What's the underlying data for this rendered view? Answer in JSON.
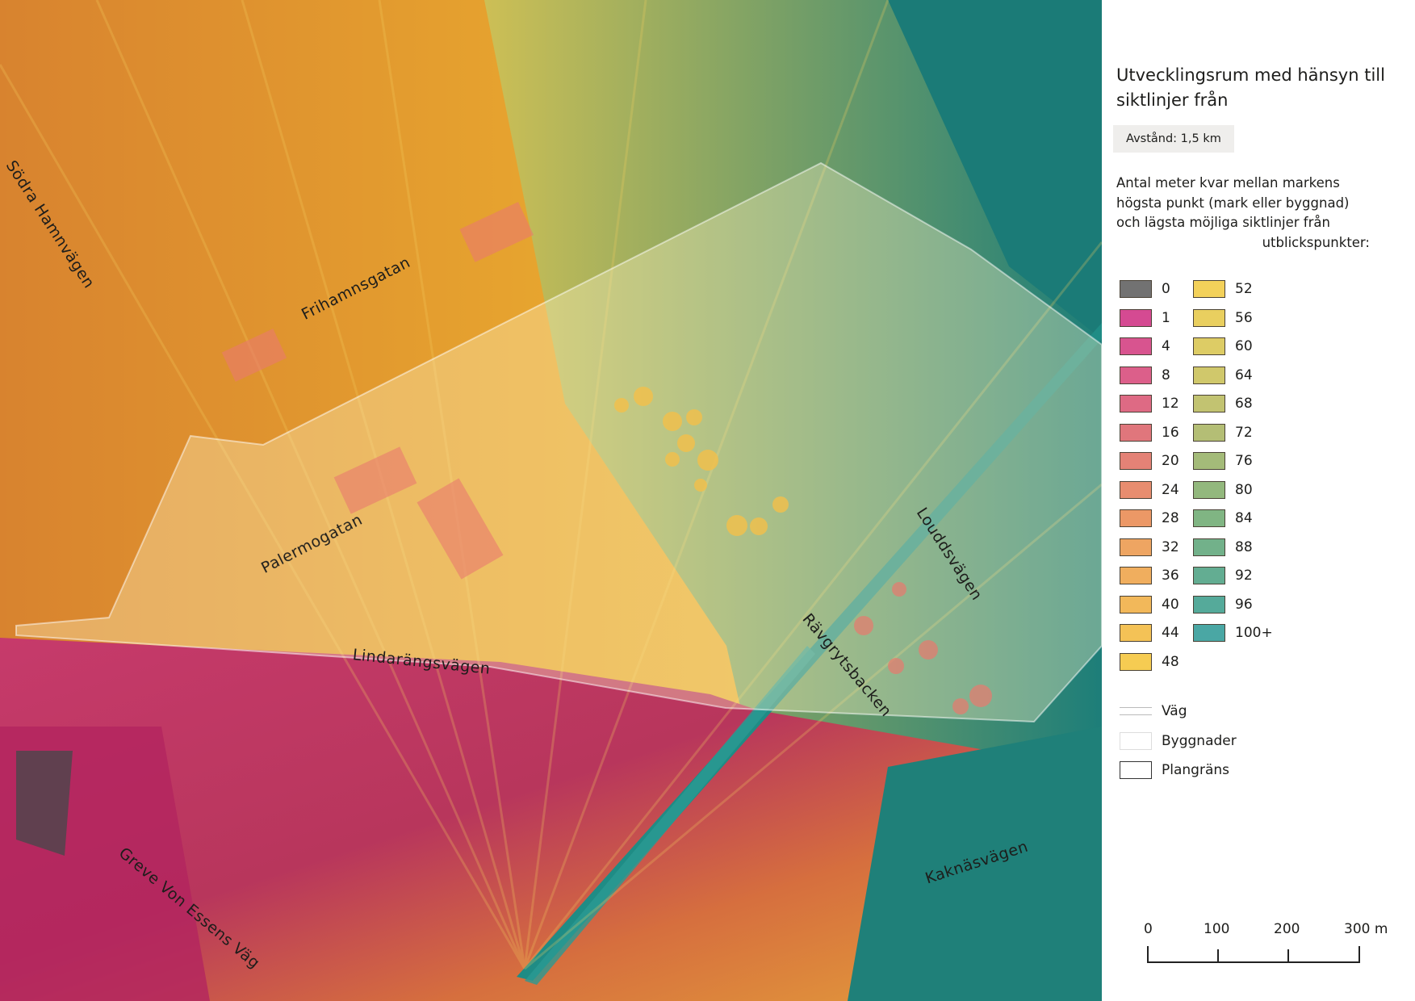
{
  "map": {
    "roads": [
      {
        "id": "sodra-hamnvagen",
        "label": "Södra Hamnvägen"
      },
      {
        "id": "frihamnsgatan",
        "label": "Frihamnsgatan"
      },
      {
        "id": "palermogatan",
        "label": "Palermogatan"
      },
      {
        "id": "lindarangsvagen",
        "label": "Lindarängsvägen"
      },
      {
        "id": "louddsvagen",
        "label": "Louddsvägen"
      },
      {
        "id": "ravgrytsbacken",
        "label": "Rävgrytsbacken"
      },
      {
        "id": "greve-von-essens-vag",
        "label": "Greve Von Essens Väg"
      },
      {
        "id": "kaknasvagen",
        "label": "Kaknäsvägen"
      }
    ]
  },
  "legend": {
    "title": "Utvecklingsrum med hänsyn till siktlinjer från",
    "distance": "Avstånd: 1,5 km",
    "description": "Antal meter kvar mellan markens högsta punkt (mark eller byggnad) och lägsta möjliga siktlinjer från",
    "description_last": "utblickspunkter:",
    "classes": [
      {
        "label": "0",
        "color": "#727272"
      },
      {
        "label": "1",
        "color": "#d54a92"
      },
      {
        "label": "4",
        "color": "#d8548f"
      },
      {
        "label": "8",
        "color": "#dc5f8a"
      },
      {
        "label": "12",
        "color": "#de6a84"
      },
      {
        "label": "16",
        "color": "#e0767c"
      },
      {
        "label": "20",
        "color": "#e48276"
      },
      {
        "label": "24",
        "color": "#e88d6f"
      },
      {
        "label": "28",
        "color": "#ec9866"
      },
      {
        "label": "32",
        "color": "#eea562"
      },
      {
        "label": "36",
        "color": "#f0ae5e"
      },
      {
        "label": "40",
        "color": "#f2b85a"
      },
      {
        "label": "44",
        "color": "#f4c256"
      },
      {
        "label": "48",
        "color": "#f6cc52"
      },
      {
        "label": "52",
        "color": "#f3d15a"
      },
      {
        "label": "56",
        "color": "#e9cf5f"
      },
      {
        "label": "60",
        "color": "#ddcc65"
      },
      {
        "label": "64",
        "color": "#d0c86b"
      },
      {
        "label": "68",
        "color": "#c2c371"
      },
      {
        "label": "72",
        "color": "#b4be75"
      },
      {
        "label": "76",
        "color": "#a4bb79"
      },
      {
        "label": "80",
        "color": "#93b87d"
      },
      {
        "label": "84",
        "color": "#80b583"
      },
      {
        "label": "88",
        "color": "#72b18a"
      },
      {
        "label": "92",
        "color": "#63ad92"
      },
      {
        "label": "96",
        "color": "#55aa9a"
      },
      {
        "label": "100+",
        "color": "#4aa7a4"
      }
    ],
    "other": [
      {
        "label": "Väg",
        "type": "road"
      },
      {
        "label": "Byggnader",
        "type": "building"
      },
      {
        "label": "Plangräns",
        "type": "boundary"
      }
    ],
    "scalebar": {
      "ticks": [
        "0",
        "100",
        "200",
        "300 m"
      ]
    }
  }
}
